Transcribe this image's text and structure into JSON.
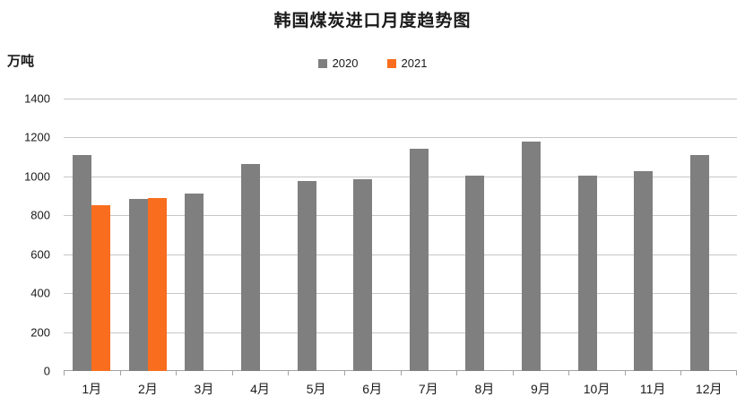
{
  "chart_data": {
    "type": "bar",
    "title": "韩国煤炭进口月度趋势图",
    "ylabel": "万吨",
    "xlabel": "",
    "categories": [
      "1月",
      "2月",
      "3月",
      "4月",
      "5月",
      "6月",
      "7月",
      "8月",
      "9月",
      "10月",
      "11月",
      "12月"
    ],
    "series": [
      {
        "name": "2020",
        "color": "#7F7F7F",
        "values": [
          1110,
          885,
          910,
          1065,
          975,
          985,
          1140,
          1005,
          1180,
          1005,
          1025,
          1110
        ]
      },
      {
        "name": "2021",
        "color": "#F86E1E",
        "values": [
          850,
          890,
          null,
          null,
          null,
          null,
          null,
          null,
          null,
          null,
          null,
          null
        ]
      }
    ],
    "ylim": [
      0,
      1400
    ],
    "yticks": [
      0,
      200,
      400,
      600,
      800,
      1000,
      1200,
      1400
    ],
    "grid": true,
    "legend_position": "top-center",
    "colors": {
      "gridline": "#C6C6C6",
      "axis": "#A3A3A3",
      "text": "#1A1A1A",
      "background": "#FFFFFF"
    }
  }
}
